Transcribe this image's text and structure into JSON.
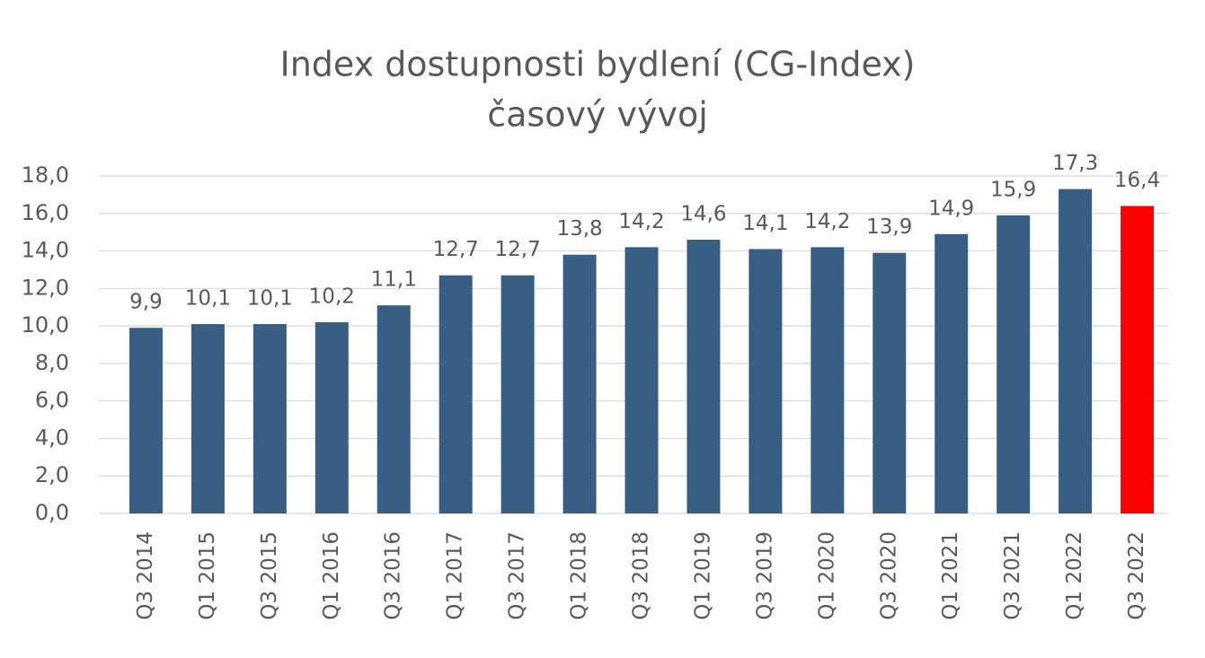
{
  "chart_data": {
    "type": "bar",
    "title": "Index dostupnosti bydlení (CG-Index)",
    "subtitle": "časový vývoj",
    "categories": [
      "Q3 2014",
      "Q1 2015",
      "Q3 2015",
      "Q1 2016",
      "Q3 2016",
      "Q1 2017",
      "Q3 2017",
      "Q1 2018",
      "Q3 2018",
      "Q1 2019",
      "Q3 2019",
      "Q1 2020",
      "Q3 2020",
      "Q1 2021",
      "Q3 2021",
      "Q1 2022",
      "Q3 2022"
    ],
    "values": [
      9.9,
      10.1,
      10.1,
      10.2,
      11.1,
      12.7,
      12.7,
      13.8,
      14.2,
      14.6,
      14.1,
      14.2,
      13.9,
      14.9,
      15.9,
      17.3,
      16.4
    ],
    "value_labels": [
      "9,9",
      "10,1",
      "10,1",
      "10,2",
      "11,1",
      "12,7",
      "12,7",
      "13,8",
      "14,2",
      "14,6",
      "14,1",
      "14,2",
      "13,9",
      "14,9",
      "15,9",
      "17,3",
      "16,4"
    ],
    "colors": [
      "#385e84",
      "#385e84",
      "#385e84",
      "#385e84",
      "#385e84",
      "#385e84",
      "#385e84",
      "#385e84",
      "#385e84",
      "#385e84",
      "#385e84",
      "#385e84",
      "#385e84",
      "#385e84",
      "#385e84",
      "#385e84",
      "#ff0000"
    ],
    "ylim": [
      0,
      18
    ],
    "yticks": [
      {
        "value": 0,
        "label": "0,0"
      },
      {
        "value": 2,
        "label": "2,0"
      },
      {
        "value": 4,
        "label": "4,0"
      },
      {
        "value": 6,
        "label": "6,0"
      },
      {
        "value": 8,
        "label": "8,0"
      },
      {
        "value": 10,
        "label": "10,0"
      },
      {
        "value": 12,
        "label": "12,0"
      },
      {
        "value": 14,
        "label": "14,0"
      },
      {
        "value": 16,
        "label": "16,0"
      },
      {
        "value": 18,
        "label": "18,0"
      }
    ],
    "grid": true
  }
}
